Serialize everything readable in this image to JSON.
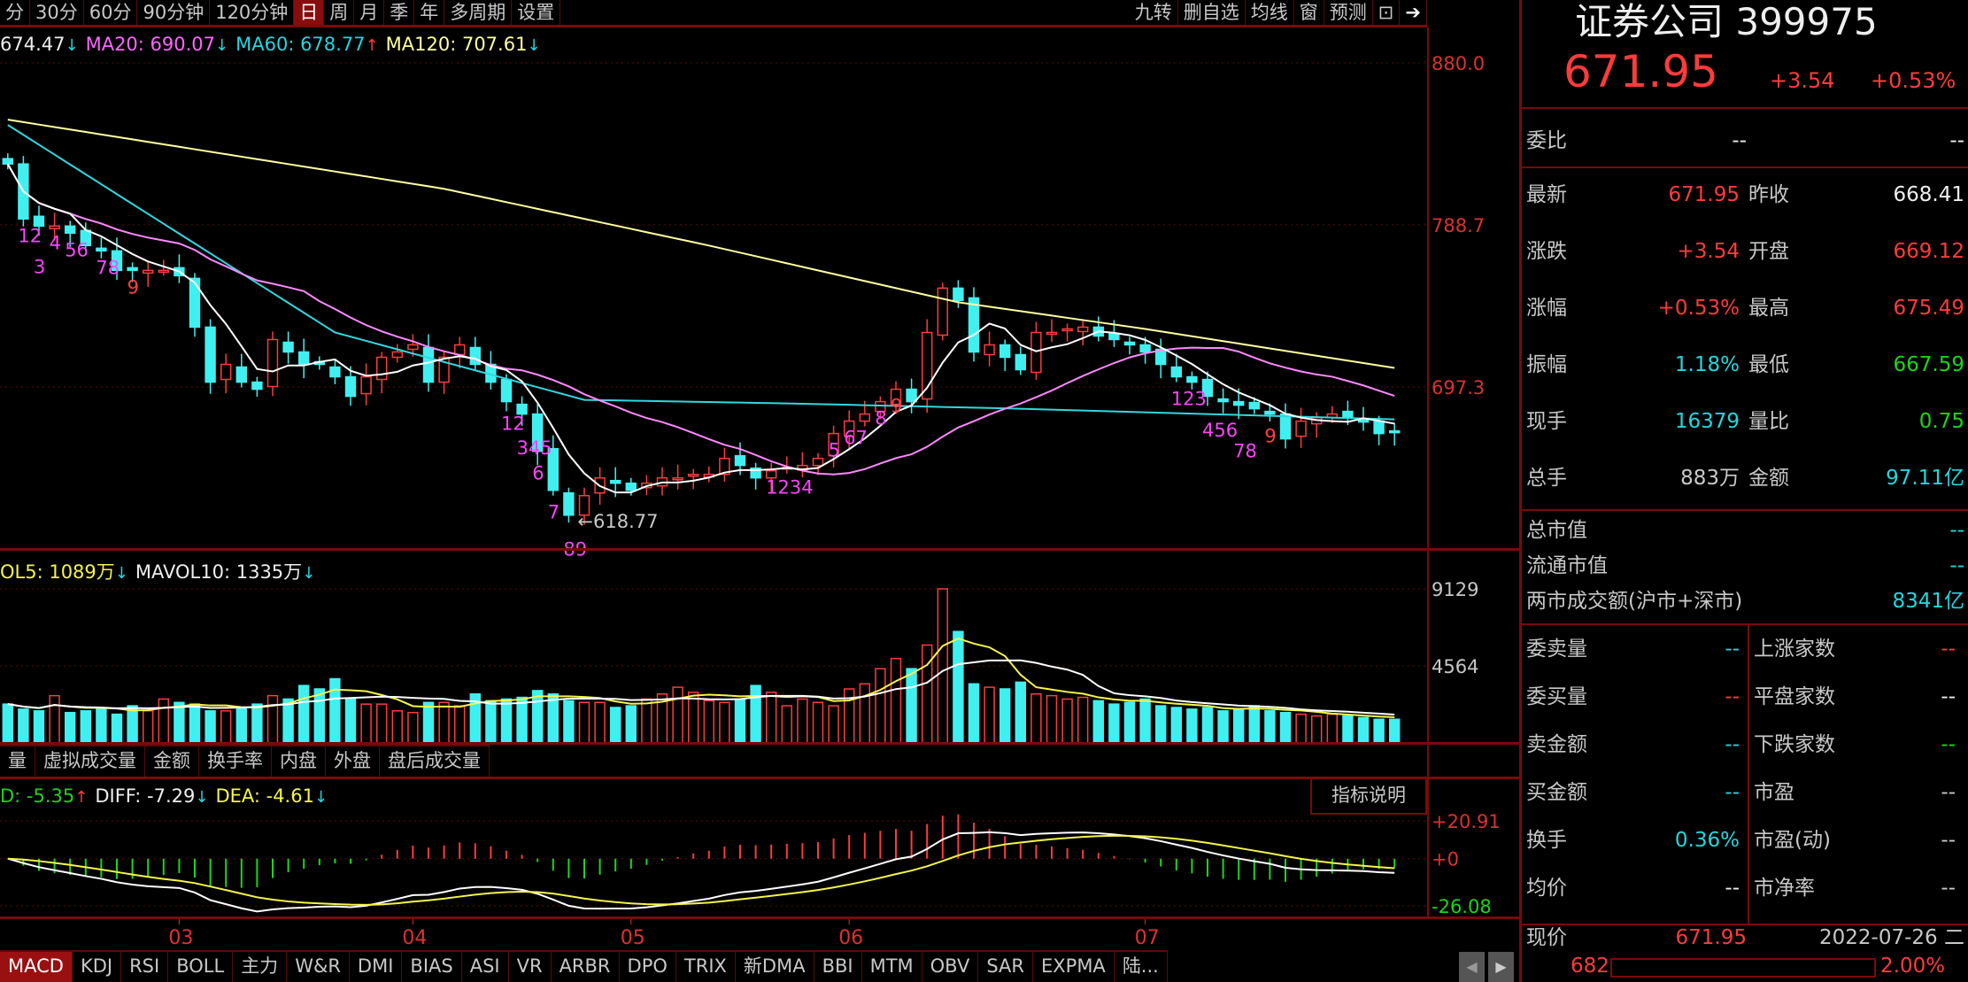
{
  "toolbar": {
    "periods": [
      "分",
      "30分",
      "60分",
      "90分钟",
      "120分钟",
      "日",
      "周",
      "月",
      "季",
      "年",
      "多周期",
      "设置"
    ],
    "active": "日",
    "right": [
      "九转",
      "删自选",
      "均线",
      "窗",
      "预测"
    ],
    "icons": [
      "lock-icon",
      "collapse-panel-icon"
    ]
  },
  "main_legend": {
    "ma5": "674.47",
    "ma20": "MA20: 690.07",
    "ma60": "MA60: 678.77",
    "ma120": "MA120: 707.61",
    "ma5_dir": "↓",
    "ma20_dir": "↓",
    "ma60_dir": "↑",
    "ma120_dir": "↓"
  },
  "vol_legend": {
    "mavol5": "OL5: 1089万",
    "mavol10": "MAVOL10: 1335万",
    "dir5": "↓",
    "dir10": "↓"
  },
  "macd_legend": {
    "macd": "D: -5.35",
    "diff": "DIFF: -7.29",
    "dea": "DEA: -4.61",
    "dir_macd": "↑",
    "dir_diff": "↓",
    "dir_dea": "↓"
  },
  "indicator_help": "指标说明",
  "vol_tabs": [
    "量",
    "虚拟成交量",
    "金额",
    "换手率",
    "内盘",
    "外盘",
    "盘后成交量"
  ],
  "bottom_tabs": [
    "MACD",
    "KDJ",
    "RSI",
    "BOLL",
    "主力",
    "W&R",
    "DMI",
    "BIAS",
    "ASI",
    "VR",
    "ARBR",
    "DPO",
    "TRIX",
    "新DMA",
    "BBI",
    "MTM",
    "OBV",
    "SAR",
    "EXPMA",
    "陆..."
  ],
  "bottom_active": "MACD",
  "colors": {
    "up": "#ff3b3b",
    "down": "#40f0f0",
    "ma5": "#ffffff",
    "ma20": "#ff88ff",
    "ma60": "#30d8e0",
    "ma120": "#ffffa0",
    "mavol5": "#f5f54a",
    "mavol10": "#ffffff",
    "border": "#7a0a0a"
  },
  "chart_data": {
    "type": "candlestick",
    "price_axis": {
      "ticks": [
        "880.0",
        "788.7",
        "697.3"
      ],
      "values": [
        880.0,
        788.7,
        697.3
      ]
    },
    "volume_axis": {
      "ticks": [
        "9129",
        "4564"
      ],
      "values": [
        9129,
        4564
      ]
    },
    "macd_axis": {
      "ticks": [
        "+20.91",
        "+0",
        "-26.08"
      ],
      "values": [
        20.91,
        0,
        -26.08
      ]
    },
    "months": [
      {
        "label": "03",
        "index": 11
      },
      {
        "label": "04",
        "index": 26
      },
      {
        "label": "05",
        "index": 40
      },
      {
        "label": "06",
        "index": 54
      },
      {
        "label": "07",
        "index": 73
      }
    ],
    "closes": [
      823,
      792,
      788,
      788,
      784,
      777,
      774,
      763,
      763,
      763,
      763,
      760,
      731,
      700,
      710,
      700,
      696,
      724,
      717,
      710,
      710,
      703,
      692,
      703,
      714,
      717,
      721,
      700,
      714,
      721,
      710,
      700,
      689,
      682,
      661,
      639,
      625,
      636,
      646,
      643,
      639,
      643,
      646,
      646,
      648,
      648,
      657,
      653,
      646,
      650,
      652,
      653,
      657,
      671,
      678,
      682,
      689,
      696,
      689,
      728,
      753,
      746,
      717,
      721,
      714,
      707,
      728,
      728,
      730,
      731,
      726,
      724,
      721,
      717,
      710,
      703,
      700,
      692,
      689,
      687,
      685,
      682,
      668,
      678,
      680,
      682,
      680,
      678,
      671,
      671.95
    ],
    "volumes": [
      2300,
      2000,
      1900,
      2800,
      1800,
      1900,
      2000,
      1700,
      2200,
      1900,
      2600,
      2400,
      2300,
      1900,
      1900,
      2100,
      2300,
      2800,
      2600,
      3400,
      3200,
      3800,
      2600,
      2300,
      2300,
      1900,
      1800,
      2400,
      2400,
      2200,
      2900,
      2500,
      2600,
      2700,
      3100,
      2900,
      2500,
      2400,
      2400,
      2100,
      2200,
      2600,
      2900,
      3300,
      3000,
      2500,
      2400,
      2600,
      3400,
      3000,
      2200,
      2600,
      2400,
      2200,
      3200,
      3500,
      4400,
      5000,
      4400,
      5800,
      9129,
      6600,
      3500,
      3300,
      3200,
      3600,
      2900,
      2800,
      2600,
      2700,
      2500,
      2300,
      2400,
      2600,
      2200,
      2100,
      2000,
      2100,
      1900,
      2000,
      2200,
      1900,
      1800,
      1700,
      1600,
      1700,
      1600,
      1500,
      1400,
      1400
    ],
    "ma60_points": [
      [
        0,
        845
      ],
      [
        21,
        728
      ],
      [
        37,
        690
      ],
      [
        50,
        688
      ],
      [
        65,
        685
      ],
      [
        89,
        679
      ]
    ],
    "ma120_points": [
      [
        0,
        848
      ],
      [
        28,
        809
      ],
      [
        45,
        777
      ],
      [
        61,
        745
      ],
      [
        73,
        730
      ],
      [
        89,
        708
      ]
    ],
    "low_label": {
      "text": "618.77",
      "index": 36,
      "value": 618.77
    },
    "sequence_labels": [
      {
        "text": "12",
        "index": 1
      },
      {
        "text": "3",
        "index": 2
      },
      {
        "text": "4",
        "index": 3
      },
      {
        "text": "56",
        "index": 4
      },
      {
        "text": "78",
        "index": 6
      },
      {
        "text": "9",
        "index": 8
      },
      {
        "text": "12",
        "index": 32
      },
      {
        "text": "345",
        "index": 33
      },
      {
        "text": "6",
        "index": 34
      },
      {
        "text": "7",
        "index": 35
      },
      {
        "text": "89",
        "index": 36
      },
      {
        "text": "1234",
        "index": 49
      },
      {
        "text": "5",
        "index": 53
      },
      {
        "text": "67",
        "index": 54
      },
      {
        "text": "8",
        "index": 56
      },
      {
        "text": "9",
        "index": 57
      },
      {
        "text": "123",
        "index": 75
      },
      {
        "text": "456",
        "index": 77
      },
      {
        "text": "78",
        "index": 79
      },
      {
        "text": "9",
        "index": 81
      }
    ]
  },
  "quote": {
    "title": "证券公司 399975",
    "price": "671.95",
    "change": "+3.54",
    "change_pct": "+0.53%",
    "weibi": {
      "label": "委比",
      "v1": "--",
      "v2": "--"
    },
    "rows": [
      {
        "l1": "最新",
        "v1": "671.95",
        "c1": "red",
        "l2": "昨收",
        "v2": "668.41",
        "c2": "wht"
      },
      {
        "l1": "涨跌",
        "v1": "+3.54",
        "c1": "red",
        "l2": "开盘",
        "v2": "669.12",
        "c2": "red"
      },
      {
        "l1": "涨幅",
        "v1": "+0.53%",
        "c1": "red",
        "l2": "最高",
        "v2": "675.49",
        "c2": "red"
      },
      {
        "l1": "振幅",
        "v1": "1.18%",
        "c1": "cyn",
        "l2": "最低",
        "v2": "667.59",
        "c2": "grn"
      },
      {
        "l1": "现手",
        "v1": "16379",
        "c1": "cyn",
        "l2": "量比",
        "v2": "0.75",
        "c2": "grn"
      },
      {
        "l1": "总手",
        "v1": "883万",
        "c1": "lab",
        "l2": "金额",
        "v2": "97.11亿",
        "c2": "cyn"
      }
    ],
    "market": [
      {
        "l": "总市值",
        "v": "--"
      },
      {
        "l": "流通市值",
        "v": "--"
      },
      {
        "l": "两市成交额(沪市+深市)",
        "v": "8341亿"
      }
    ],
    "grid": [
      {
        "l1": "委卖量",
        "v1": "--",
        "c1": "cyn",
        "l2": "上涨家数",
        "v2": "--",
        "c2": "red"
      },
      {
        "l1": "委买量",
        "v1": "--",
        "c1": "red",
        "l2": "平盘家数",
        "v2": "--",
        "c2": "wht"
      },
      {
        "l1": "卖金额",
        "v1": "--",
        "c1": "cyn",
        "l2": "下跌家数",
        "v2": "--",
        "c2": "grn"
      },
      {
        "l1": "买金额",
        "v1": "--",
        "c1": "cyn",
        "l2": "市盈",
        "v2": "--",
        "c2": "lab"
      },
      {
        "l1": "换手",
        "v1": "0.36%",
        "c1": "cyn",
        "l2": "市盈(动)",
        "v2": "--",
        "c2": "lab"
      },
      {
        "l1": "均价",
        "v1": "--",
        "c1": "wht",
        "l2": "市净率",
        "v2": "--",
        "c2": "lab"
      }
    ],
    "footer": {
      "label": "现价",
      "price": "671.95",
      "date": "2022-07-26 二",
      "scale_top": "682",
      "scale_pct": "2.00%"
    }
  }
}
